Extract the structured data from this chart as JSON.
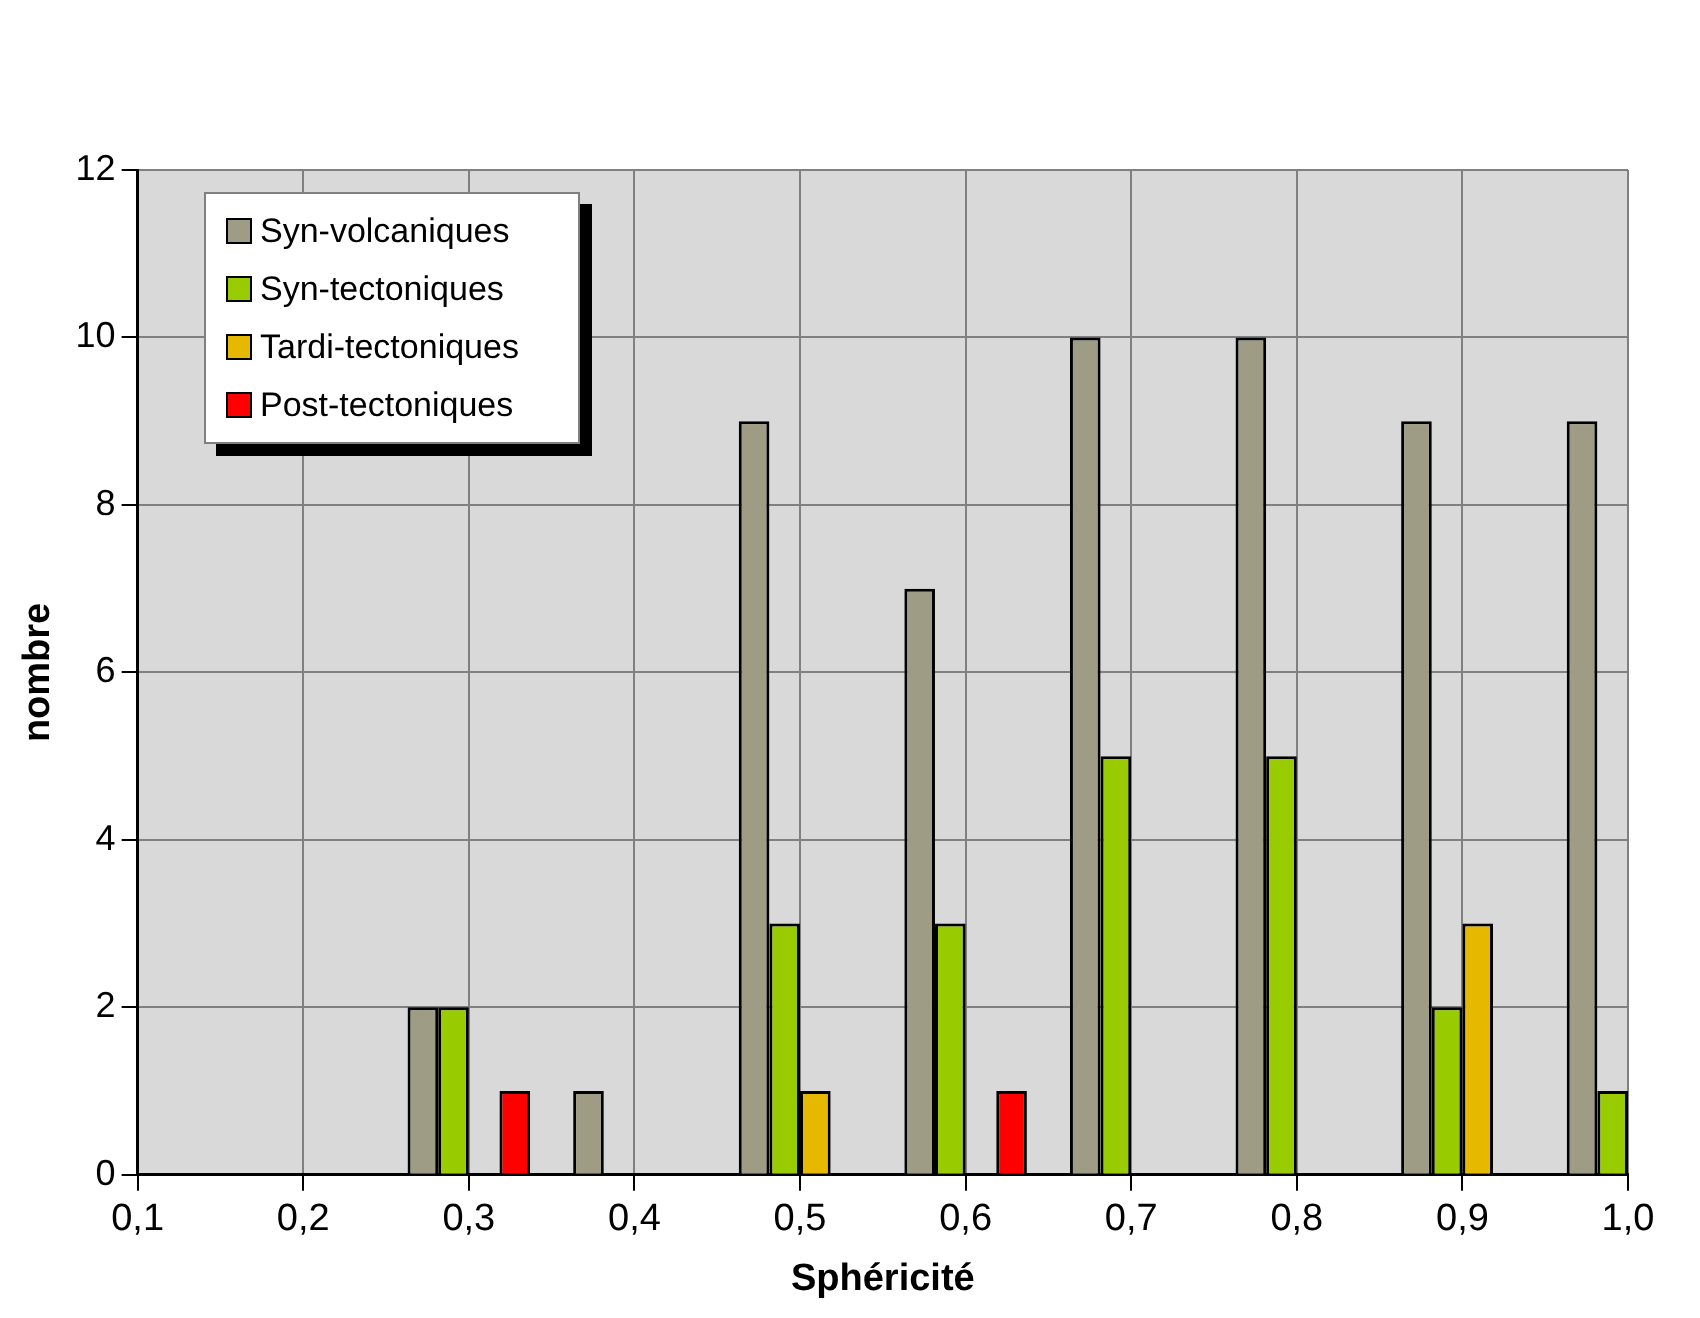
{
  "chart_data": {
    "type": "bar",
    "xlabel": "Sphéricité",
    "ylabel": "nombre",
    "categories": [
      "0,1",
      "0,2",
      "0,3",
      "0,4",
      "0,5",
      "0,6",
      "0,7",
      "0,8",
      "0,9",
      "1,0"
    ],
    "series": [
      {
        "name": "Syn-volcaniques",
        "color": "#9e9c84",
        "values": [
          null,
          0,
          2,
          1,
          9,
          7,
          10,
          10,
          9,
          9
        ]
      },
      {
        "name": "Syn-tectoniques",
        "color": "#99cc00",
        "values": [
          null,
          0,
          2,
          0,
          3,
          3,
          5,
          5,
          2,
          1
        ]
      },
      {
        "name": "Tardi-tectoniques",
        "color": "#e6b800",
        "values": [
          0,
          0,
          0,
          0,
          1,
          0,
          0,
          0,
          3,
          null
        ]
      },
      {
        "name": "Post-tectoniques",
        "color": "#ff0000",
        "values": [
          0,
          0,
          1,
          0,
          0,
          1,
          0,
          0,
          0,
          null
        ]
      }
    ],
    "ylim": [
      0,
      12
    ],
    "yticks": [
      0,
      2,
      4,
      6,
      8,
      10,
      12
    ],
    "grid": true,
    "legend": "top left"
  }
}
